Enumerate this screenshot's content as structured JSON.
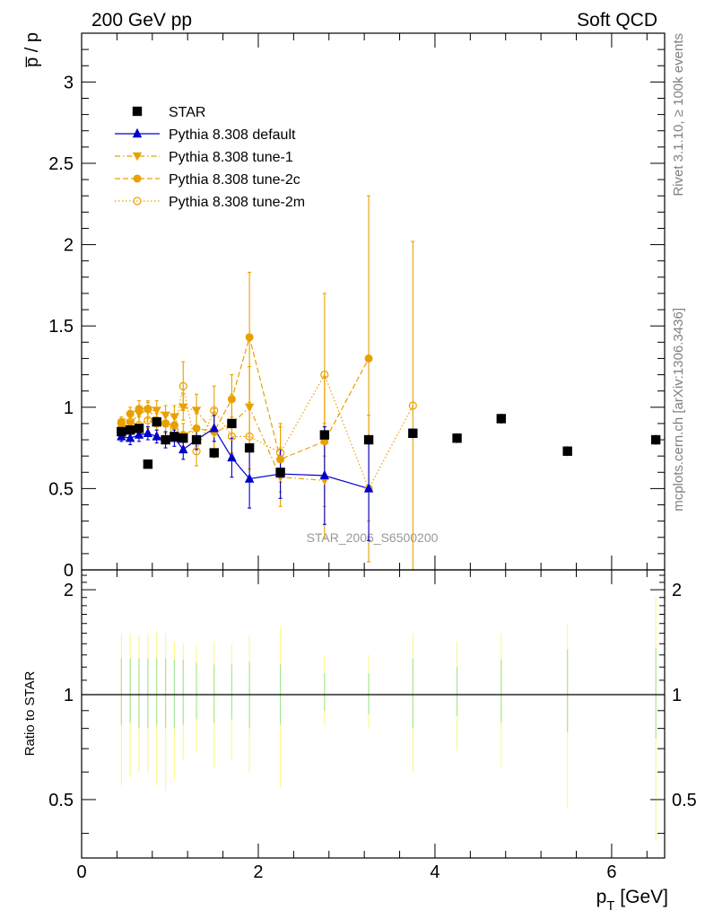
{
  "header": {
    "left": "200 GeV pp",
    "right": "Soft QCD"
  },
  "side": {
    "rivet": "Rivet 3.1.10, ≥ 100k events",
    "mcplots": "mcplots.cern.ch [arXiv:1306.3436]"
  },
  "watermark": "STAR_2006_S6500200",
  "chart_data": [
    {
      "type": "scatter",
      "ylabel": "p̅ / p",
      "xlim": [
        0,
        6.6
      ],
      "ylim": [
        0,
        3.3
      ],
      "yticks": [
        0,
        0.5,
        1,
        1.5,
        2,
        2.5,
        3
      ],
      "ytick_labels": [
        "0",
        "0.5",
        "1",
        "1.5",
        "2",
        "2.5",
        "3"
      ],
      "legend_position": "top-left",
      "series": [
        {
          "name": "STAR",
          "color": "#000000",
          "marker": "square",
          "line": "none",
          "x": [
            0.45,
            0.55,
            0.65,
            0.75,
            0.85,
            0.95,
            1.05,
            1.15,
            1.3,
            1.5,
            1.7,
            1.9,
            2.25,
            2.75,
            3.25,
            3.75,
            4.25,
            4.75,
            5.5,
            6.5
          ],
          "y": [
            0.85,
            0.86,
            0.87,
            0.65,
            0.91,
            0.8,
            0.82,
            0.81,
            0.8,
            0.72,
            0.9,
            0.75,
            0.6,
            0.83,
            0.8,
            0.84,
            0.81,
            0.93,
            0.73,
            0.8
          ],
          "err": [
            0.02,
            0.02,
            0.02,
            0.02,
            0.02,
            0.02,
            0.02,
            0.02,
            0.02,
            0.02,
            0.02,
            0.02,
            0.02,
            0.03,
            0.03,
            0.03,
            0.03,
            0.03,
            0.03,
            0.03
          ]
        },
        {
          "name": "Pythia 8.308 default",
          "color": "#0000cc",
          "marker": "triangle-up",
          "line": "solid",
          "x": [
            0.45,
            0.55,
            0.65,
            0.75,
            0.85,
            0.95,
            1.05,
            1.15,
            1.3,
            1.5,
            1.7,
            1.9,
            2.25,
            2.75,
            3.25
          ],
          "y": [
            0.82,
            0.81,
            0.83,
            0.84,
            0.82,
            0.8,
            0.81,
            0.74,
            0.8,
            0.87,
            0.69,
            0.56,
            0.59,
            0.58,
            0.5
          ],
          "err": [
            0.03,
            0.04,
            0.04,
            0.04,
            0.04,
            0.05,
            0.05,
            0.06,
            0.06,
            0.08,
            0.12,
            0.18,
            0.15,
            0.3,
            0.32
          ]
        },
        {
          "name": "Pythia 8.308 tune-1",
          "color": "#e8a000",
          "marker": "triangle-down",
          "line": "dashdot",
          "x": [
            0.45,
            0.55,
            0.65,
            0.75,
            0.85,
            0.95,
            1.05,
            1.15,
            1.3,
            1.5,
            1.7,
            1.9,
            2.25,
            2.75
          ],
          "y": [
            0.88,
            0.9,
            0.96,
            0.98,
            0.98,
            0.95,
            0.94,
            1.0,
            0.98,
            0.84,
            0.9,
            1.0,
            0.57,
            0.55
          ],
          "err": [
            0.03,
            0.04,
            0.05,
            0.05,
            0.06,
            0.06,
            0.07,
            0.08,
            0.1,
            0.15,
            0.18,
            0.25,
            0.18,
            0.35
          ]
        },
        {
          "name": "Pythia 8.308 tune-2c",
          "color": "#e8a000",
          "marker": "circle",
          "line": "dashed",
          "x": [
            0.45,
            0.55,
            0.65,
            0.75,
            0.85,
            0.95,
            1.05,
            1.15,
            1.3,
            1.5,
            1.7,
            1.9,
            2.25,
            2.75,
            3.25
          ],
          "y": [
            0.91,
            0.96,
            0.99,
            0.99,
            0.92,
            0.9,
            0.89,
            0.83,
            0.87,
            0.85,
            1.05,
            1.43,
            0.68,
            0.79,
            1.3
          ],
          "err": [
            0.03,
            0.04,
            0.05,
            0.05,
            0.06,
            0.06,
            0.07,
            0.07,
            0.09,
            0.12,
            0.15,
            0.4,
            0.2,
            0.4,
            1.0
          ]
        },
        {
          "name": "Pythia 8.308 tune-2m",
          "color": "#e8a000",
          "marker": "open-circle",
          "line": "dotted",
          "x": [
            0.45,
            0.55,
            0.65,
            0.75,
            0.85,
            0.95,
            1.05,
            1.15,
            1.3,
            1.5,
            1.7,
            1.9,
            2.25,
            2.75,
            3.25,
            3.75
          ],
          "y": [
            0.87,
            0.91,
            0.89,
            0.92,
            0.9,
            0.9,
            0.86,
            1.13,
            0.73,
            0.98,
            0.82,
            0.82,
            0.72,
            1.2,
            0.5,
            1.01
          ],
          "err": [
            0.03,
            0.04,
            0.05,
            0.05,
            0.06,
            0.06,
            0.07,
            0.15,
            0.09,
            0.15,
            0.12,
            0.2,
            0.18,
            0.5,
            0.45,
            1.01
          ]
        }
      ]
    },
    {
      "type": "scatter",
      "ylabel": "Ratio to STAR",
      "xlabel": "p_T [GeV]",
      "xlim": [
        0,
        6.6
      ],
      "ylim": [
        0.34,
        2.28
      ],
      "log_y": true,
      "xticks": [
        0,
        2,
        4,
        6
      ],
      "xtick_labels": [
        "0",
        "2",
        "4",
        "6"
      ],
      "yticks": [
        0.5,
        1,
        2
      ],
      "ytick_labels": [
        "0.5",
        "1",
        "2"
      ],
      "reference_line": 1,
      "bands": {
        "x": [
          0.45,
          0.55,
          0.65,
          0.75,
          0.85,
          0.95,
          1.05,
          1.15,
          1.3,
          1.5,
          1.7,
          1.9,
          2.25,
          2.75,
          3.25,
          3.75,
          4.25,
          4.75,
          5.5,
          6.5
        ],
        "inner_lo": [
          0.82,
          0.83,
          0.8,
          0.8,
          0.82,
          0.8,
          0.8,
          0.82,
          0.85,
          0.83,
          0.85,
          0.8,
          0.82,
          0.9,
          0.88,
          0.8,
          0.87,
          0.83,
          0.78,
          0.75
        ],
        "inner_hi": [
          1.27,
          1.27,
          1.27,
          1.27,
          1.27,
          1.27,
          1.26,
          1.26,
          1.23,
          1.22,
          1.22,
          1.24,
          1.22,
          1.15,
          1.15,
          1.27,
          1.2,
          1.26,
          1.35,
          1.36
        ],
        "outer_lo": [
          0.55,
          0.58,
          0.6,
          0.6,
          0.55,
          0.53,
          0.57,
          0.65,
          0.68,
          0.62,
          0.65,
          0.6,
          0.54,
          0.82,
          0.8,
          0.6,
          0.69,
          0.62,
          0.47,
          0.38
        ],
        "outer_hi": [
          1.5,
          1.5,
          1.48,
          1.5,
          1.52,
          1.5,
          1.42,
          1.4,
          1.38,
          1.42,
          1.4,
          1.47,
          1.55,
          1.3,
          1.3,
          1.5,
          1.42,
          1.5,
          1.6,
          1.9
        ]
      },
      "inner_band_color": "#a6e69b",
      "outer_band_color": "#fafa8c"
    }
  ]
}
